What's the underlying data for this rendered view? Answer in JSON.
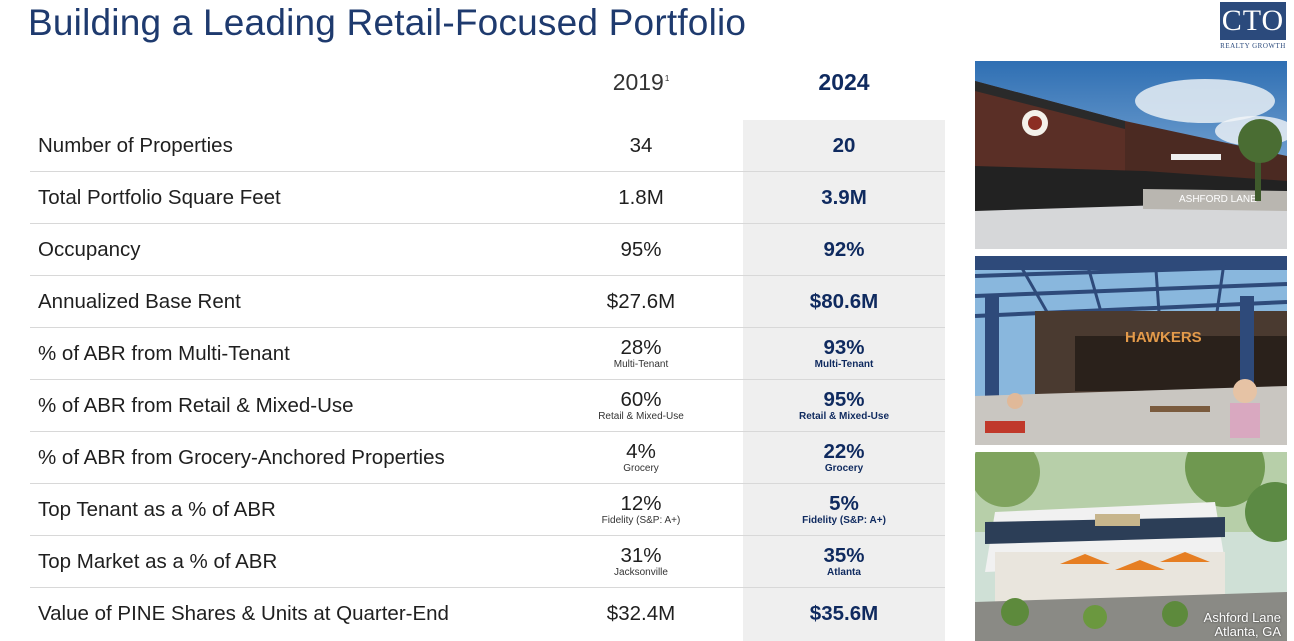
{
  "title": "Building a Leading Retail-Focused Portfolio",
  "logo": {
    "mark": "CTO",
    "sub": "REALTY GROWTH"
  },
  "headers": {
    "y2019": "2019",
    "y2019_footnote": "1",
    "y2024": "2024"
  },
  "rows": [
    {
      "label": "Number of Properties",
      "v2019": "34",
      "v2024": "20"
    },
    {
      "label": "Total Portfolio Square Feet",
      "v2019": "1.8M",
      "v2024": "3.9M"
    },
    {
      "label": "Occupancy",
      "v2019": "95%",
      "v2024": "92%"
    },
    {
      "label": "Annualized Base Rent",
      "v2019": "$27.6M",
      "v2024": "$80.6M"
    },
    {
      "label": "% of ABR from Multi-Tenant",
      "v2019": "28%",
      "s2019": "Multi-Tenant",
      "v2024": "93%",
      "s2024": "Multi-Tenant"
    },
    {
      "label": "% of ABR from Retail & Mixed-Use",
      "v2019": "60%",
      "s2019": "Retail & Mixed-Use",
      "v2024": "95%",
      "s2024": "Retail & Mixed-Use"
    },
    {
      "label": "% of ABR from Grocery-Anchored Properties",
      "v2019": "4%",
      "s2019": "Grocery",
      "v2024": "22%",
      "s2024": "Grocery"
    },
    {
      "label": "Top Tenant as a % of ABR",
      "v2019": "12%",
      "s2019": "Fidelity (S&P: A+)",
      "v2024": "5%",
      "s2024": "Fidelity (S&P: A+)"
    },
    {
      "label": "Top Market as a % of ABR",
      "v2019": "31%",
      "s2019": "Jacksonville",
      "v2024": "35%",
      "s2024": "Atlanta"
    },
    {
      "label": "Value of PINE Shares & Units at Quarter-End",
      "v2019": "$32.4M",
      "v2024": "$35.6M"
    }
  ],
  "photos": {
    "p1_sign": "ASHFORD LANE",
    "p2_sign": "HAWKERS",
    "caption_line1": "Ashford Lane",
    "caption_line2": "Atlanta, GA"
  },
  "colors": {
    "title": "#1e3a6e",
    "accent": "#0f2a5f",
    "highlight": "#efefef"
  }
}
